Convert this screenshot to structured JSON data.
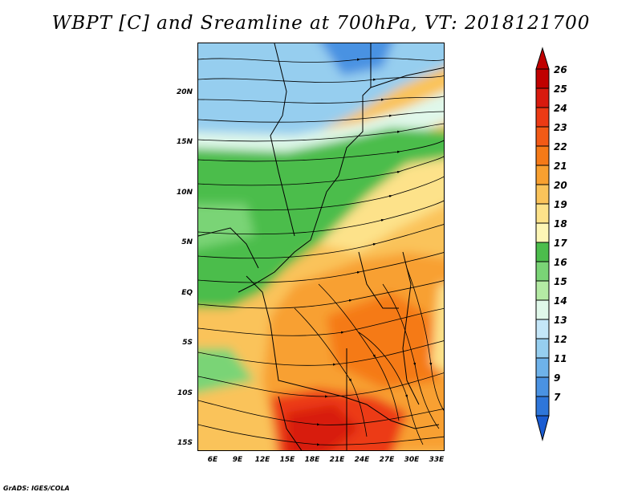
{
  "title": "WBPT [C] and Sreamline at 700hPa, VT: 2018121700",
  "footer": "GrADS: IGES/COLA",
  "map": {
    "variable": "Wet-bulb potential temperature",
    "level": "700hPa",
    "lat_range": [
      -16,
      24
    ],
    "lon_range": [
      4,
      34
    ],
    "lat_labels": [
      "20N",
      "15N",
      "10N",
      "5N",
      "EQ",
      "5S",
      "10S",
      "15S"
    ],
    "lon_labels": [
      "6E",
      "9E",
      "12E",
      "15E",
      "18E",
      "21E",
      "24E",
      "27E",
      "30E",
      "33E"
    ]
  },
  "colorbar": {
    "labels": [
      "26",
      "25",
      "24",
      "23",
      "22",
      "21",
      "20",
      "19",
      "18",
      "17",
      "16",
      "15",
      "14",
      "13",
      "12",
      "11",
      "9",
      "7"
    ],
    "colors": [
      "#c00000",
      "#d81a0e",
      "#ec3a14",
      "#f25a16",
      "#f57a18",
      "#f8a030",
      "#fac35a",
      "#fde28a",
      "#fdf6b6",
      "#4cbd4c",
      "#7ad476",
      "#b4eaa4",
      "#e0f8ea",
      "#c4e6f8",
      "#96ceef",
      "#6eb2ea",
      "#4a92e2",
      "#2e76da",
      "#1a5cd2"
    ]
  }
}
